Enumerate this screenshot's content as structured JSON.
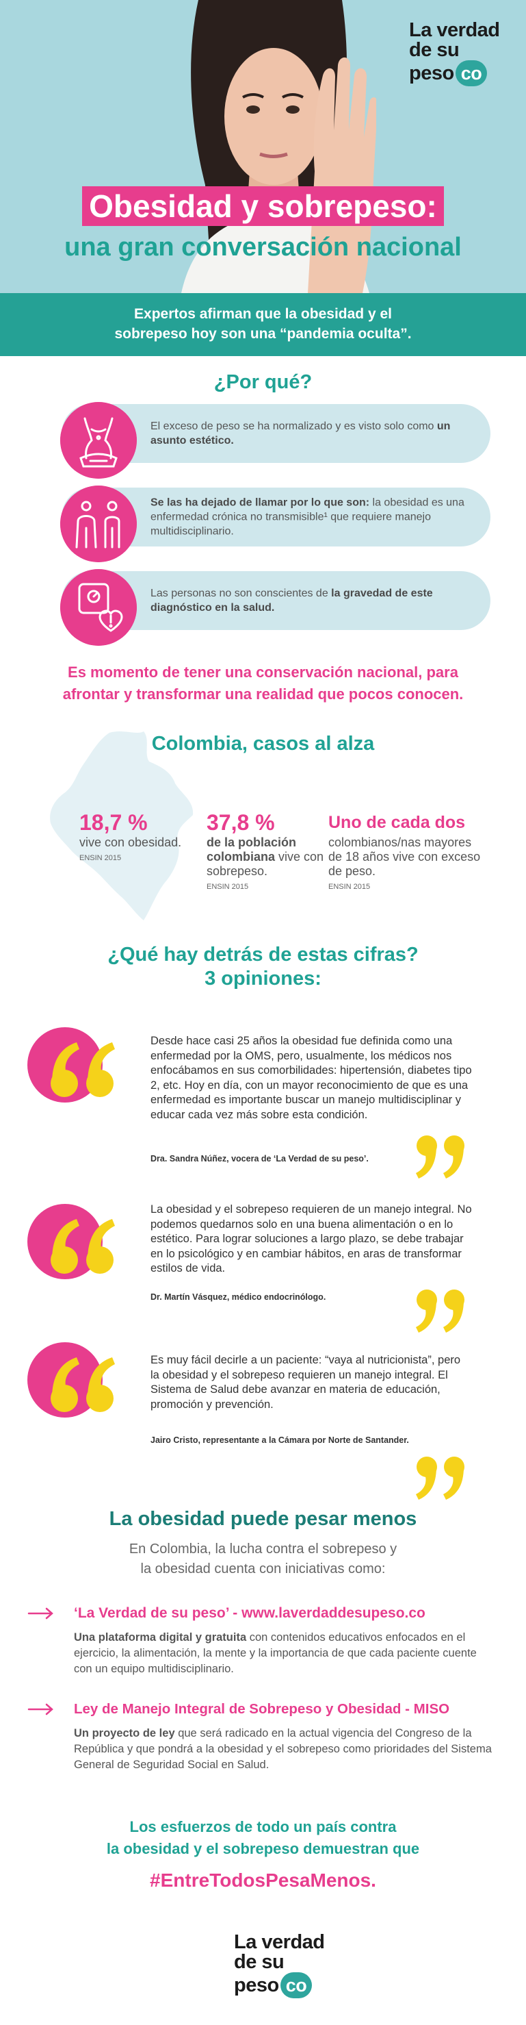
{
  "brand": {
    "line1": "La verdad",
    "line2": "de su",
    "line3": "peso",
    "domain": "co"
  },
  "hero": {
    "title": "Obesidad y sobrepeso:",
    "subtitle": "una gran conversación nacional",
    "photo_icon": "woman-stop-hand-photo"
  },
  "banner": {
    "line1": "Expertos afirman que la obesidad y el",
    "line2": "sobrepeso hoy son una “pandemia oculta”."
  },
  "why": {
    "heading": "¿Por qué?",
    "reasons": [
      {
        "icon": "body-scale-icon",
        "pre": "El exceso de peso se ha normalizado y es visto solo como ",
        "bold": "un asunto estético.",
        "post": ""
      },
      {
        "icon": "people-silhouettes-icon",
        "bold": "Se las ha dejado de llamar por lo que son:",
        "pre": "",
        "post": " la obesidad es una enfermedad crónica no transmisible¹ que requiere manejo multidisciplinario."
      },
      {
        "icon": "scale-heart-alert-icon",
        "pre": "Las personas no son conscientes de ",
        "bold": "la gravedad de este diagnóstico en la salud.",
        "post": ""
      }
    ]
  },
  "statement": {
    "line1": "Es momento de tener una conservación nacional, para",
    "line2": "afrontar y transformar una realidad que pocos conocen."
  },
  "colombia": {
    "heading": "Colombia, casos al alza",
    "map_icon": "colombia-map-icon",
    "stats": [
      {
        "number": "18,7 %",
        "text_bold": "",
        "text": "vive con obesidad.",
        "source": "ENSIN 2015"
      },
      {
        "number": "37,8 %",
        "text_bold": "de la población colombiana",
        "text": " vive con sobrepeso.",
        "source": "ENSIN 2015"
      },
      {
        "number": "Uno de cada dos",
        "text_bold": "",
        "text": "colombianos/nas mayores de 18 años vive con exceso de peso.",
        "source": "ENSIN 2015"
      }
    ]
  },
  "opinions": {
    "heading_line1": "¿Qué hay detrás de estas cifras?",
    "heading_line2": "3 opiniones:",
    "items": [
      {
        "quote": "Desde hace casi 25 años la obesidad fue definida como una enfermedad por la OMS, pero, usualmente, los médicos nos enfocábamos en sus comorbilidades: hipertensión, diabetes tipo 2, etc. Hoy en día, con un mayor reconocimiento de que es una enfermedad es importante buscar un manejo multidisciplinar y educar cada vez más sobre esta condición.",
        "author": "Dra. Sandra Núñez, vocera de ‘La Verdad de su peso’."
      },
      {
        "quote": "La obesidad y el sobrepeso requieren de un manejo integral. No podemos quedarnos solo en una buena alimentación o en lo estético. Para lograr soluciones a largo plazo, se debe trabajar en lo psicológico y en cambiar hábitos, en aras de transformar estilos de vida.",
        "author": "Dr. Martín Vásquez, médico endocrinólogo."
      },
      {
        "quote": "Es muy fácil decirle a un paciente: “vaya al nutricionista”, pero la obesidad y el sobrepeso requieren un manejo integral. El Sistema de Salud debe avanzar en materia de educación, promoción y prevención.",
        "author": "Jairo Cristo, representante a la Cámara por Norte de Santander."
      }
    ]
  },
  "initiatives": {
    "heading": "La obesidad puede pesar menos",
    "intro_line1": "En Colombia, la lucha contra el sobrepeso y",
    "intro_line2": "la obesidad cuenta con iniciativas como:",
    "items": [
      {
        "title": "‘La Verdad de su peso’ - www.laverdaddesupeso.co",
        "bold": "Una plataforma digital y gratuita",
        "text": " con contenidos educativos enfocados en el ejercicio, la alimentación, la mente y la importancia de que cada paciente cuente con un equipo multidisciplinario."
      },
      {
        "title": "Ley de Manejo Integral de Sobrepeso y Obesidad - MISO",
        "bold": "Un proyecto de ley",
        "text": " que será radicado en la actual vigencia del Congreso de la República y que pondrá a la obesidad y el sobrepeso como prioridades del Sistema General de Seguridad Social en Salud."
      }
    ]
  },
  "closing": {
    "line1": "Los esfuerzos de todo un país contra",
    "line2": "la obesidad y el sobrepeso demuestran que",
    "hashtag": "#EntreTodosPesaMenos."
  },
  "colors": {
    "pink": "#e73d8d",
    "teal": "#1fa294",
    "light_blue": "#a9d7de",
    "pill": "#cfe7ec",
    "yellow": "#f5d21a"
  }
}
